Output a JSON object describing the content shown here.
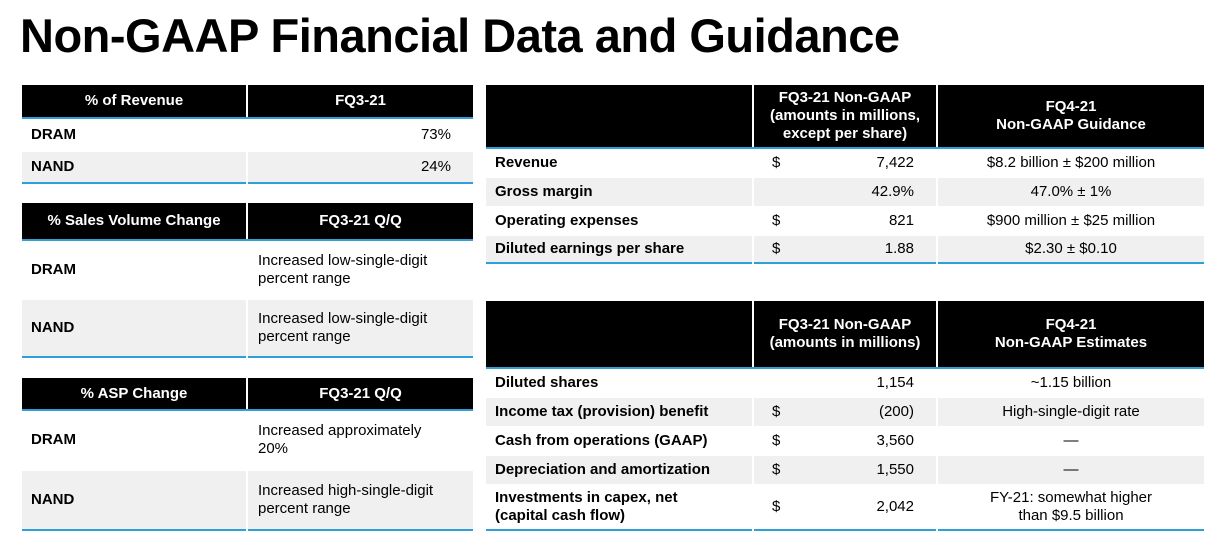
{
  "title": "Non-GAAP Financial Data and Guidance",
  "left_tables": [
    {
      "header": [
        "% of Revenue",
        "FQ3-21"
      ],
      "rows": [
        [
          "DRAM",
          "73%"
        ],
        [
          "NAND",
          "24%"
        ]
      ]
    },
    {
      "header": [
        "% Sales Volume Change",
        "FQ3-21 Q/Q"
      ],
      "rows": [
        [
          "DRAM",
          "Increased low-single-digit\npercent range"
        ],
        [
          "NAND",
          "Increased low-single-digit\npercent range"
        ]
      ]
    },
    {
      "header": [
        "% ASP Change",
        "FQ3-21 Q/Q"
      ],
      "rows": [
        [
          "DRAM",
          "Increased approximately\n20%"
        ],
        [
          "NAND",
          "Increased high-single-digit\npercent range"
        ]
      ]
    }
  ],
  "right_tables": [
    {
      "header": [
        "FQ3-21 Non-GAAP\n(amounts in millions,\nexcept per share)",
        "FQ4-21\nNon-GAAP Guidance"
      ],
      "rows": [
        {
          "label": "Revenue",
          "currency": "$",
          "value": "7,422",
          "outlook": "$8.2 billion ± $200 million"
        },
        {
          "label": "Gross margin",
          "value": "42.9%",
          "outlook": "47.0% ± 1%"
        },
        {
          "label": "Operating expenses",
          "currency": "$",
          "value": "821",
          "outlook": "$900 million ± $25 million"
        },
        {
          "label": "Diluted earnings per share",
          "currency": "$",
          "value": "1.88",
          "outlook": "$2.30 ± $0.10"
        }
      ]
    },
    {
      "header": [
        "FQ3-21 Non-GAAP\n(amounts in millions)",
        "FQ4-21\nNon-GAAP Estimates"
      ],
      "rows": [
        {
          "label": "Diluted shares",
          "value": "1,154",
          "outlook": "~1.15 billion"
        },
        {
          "label": "Income tax (provision) benefit",
          "currency": "$",
          "value": "(200)",
          "outlook": "High-single-digit rate"
        },
        {
          "label": "Cash from operations (GAAP)",
          "currency": "$",
          "value": "3,560",
          "outlook": "—"
        },
        {
          "label": "Depreciation and amortization",
          "currency": "$",
          "value": "1,550",
          "outlook": "—"
        },
        {
          "label": "Investments in capex, net\n(capital cash flow)",
          "currency": "$",
          "value": "2,042",
          "outlook": "FY-21: somewhat higher\nthan $9.5 billion"
        }
      ]
    }
  ]
}
